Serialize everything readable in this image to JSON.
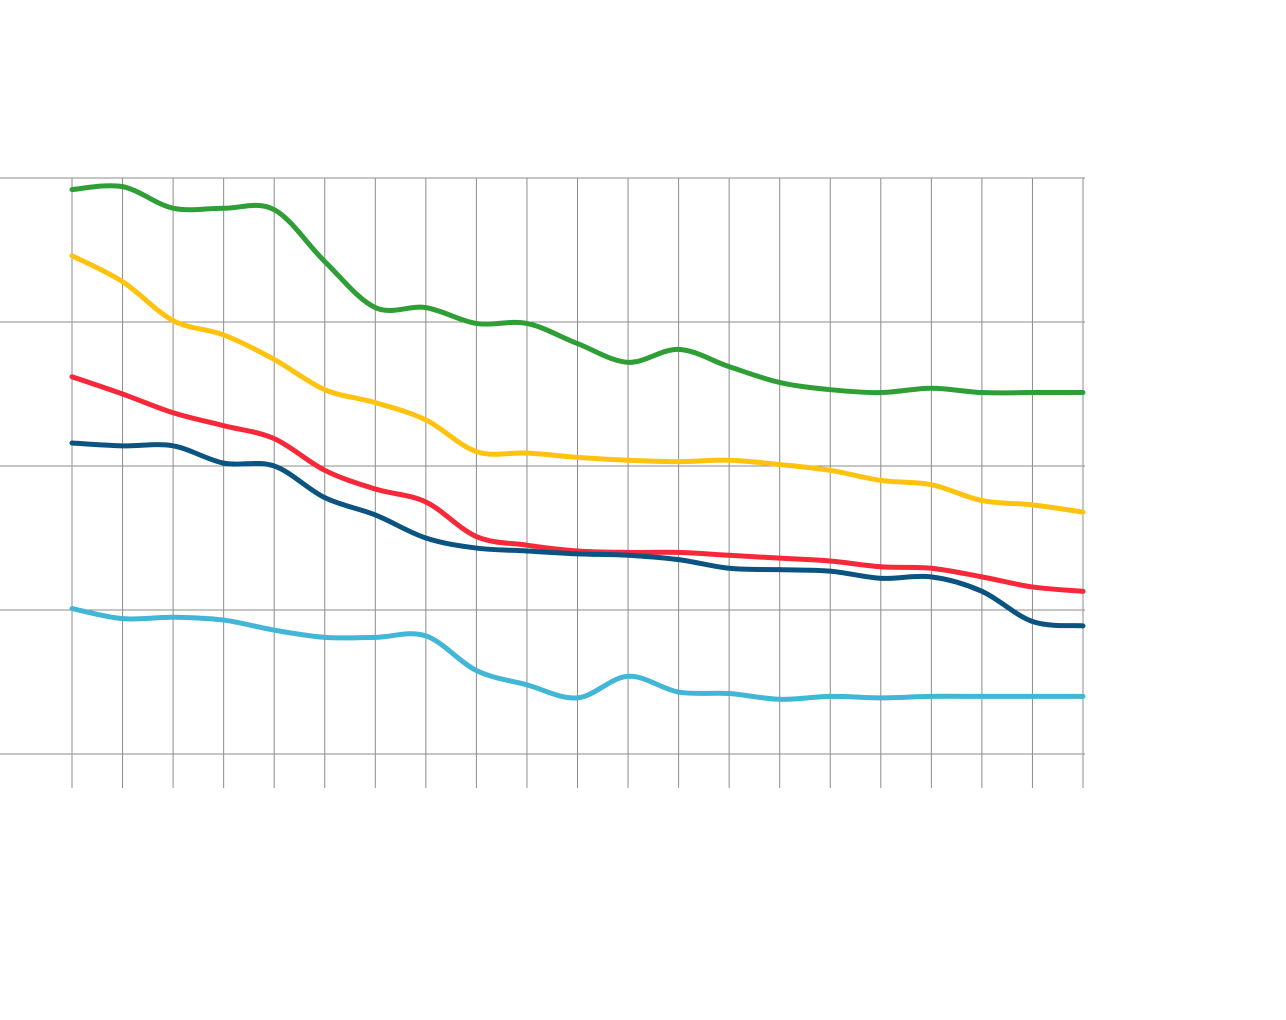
{
  "chart_data": {
    "type": "line",
    "title": "",
    "xlabel": "",
    "ylabel": "",
    "x": [
      0,
      1,
      2,
      3,
      4,
      5,
      6,
      7,
      8,
      9,
      10,
      11,
      12,
      13,
      14,
      15,
      16,
      17,
      18,
      19,
      20
    ],
    "ylim": [
      0,
      4
    ],
    "grid": true,
    "legend": "none",
    "series": [
      {
        "name": "green",
        "color": "#2e9e35",
        "values": [
          3.92,
          3.94,
          3.79,
          3.79,
          3.78,
          3.42,
          3.1,
          3.1,
          2.99,
          2.99,
          2.85,
          2.72,
          2.81,
          2.69,
          2.58,
          2.53,
          2.51,
          2.54,
          2.51,
          2.51,
          2.51
        ]
      },
      {
        "name": "yellow",
        "color": "#ffc20e",
        "values": [
          3.46,
          3.28,
          3.01,
          2.91,
          2.74,
          2.53,
          2.44,
          2.32,
          2.1,
          2.09,
          2.06,
          2.04,
          2.03,
          2.04,
          2.01,
          1.97,
          1.9,
          1.87,
          1.76,
          1.73,
          1.68
        ]
      },
      {
        "name": "red",
        "color": "#f7283a",
        "values": [
          2.62,
          2.5,
          2.37,
          2.28,
          2.19,
          1.97,
          1.84,
          1.75,
          1.51,
          1.45,
          1.41,
          1.4,
          1.4,
          1.38,
          1.36,
          1.34,
          1.3,
          1.29,
          1.23,
          1.16,
          1.13
        ]
      },
      {
        "name": "dark-blue",
        "color": "#0b5482",
        "values": [
          2.16,
          2.14,
          2.14,
          2.02,
          2.0,
          1.78,
          1.66,
          1.5,
          1.43,
          1.41,
          1.39,
          1.38,
          1.35,
          1.29,
          1.28,
          1.27,
          1.22,
          1.23,
          1.13,
          0.92,
          0.89
        ]
      },
      {
        "name": "light-blue",
        "color": "#41b6d6",
        "values": [
          1.01,
          0.94,
          0.95,
          0.93,
          0.86,
          0.81,
          0.81,
          0.82,
          0.58,
          0.48,
          0.39,
          0.54,
          0.43,
          0.42,
          0.38,
          0.4,
          0.39,
          0.4,
          0.4,
          0.4,
          0.4
        ]
      }
    ],
    "colors": {
      "grid": "#8c8c8c"
    }
  }
}
